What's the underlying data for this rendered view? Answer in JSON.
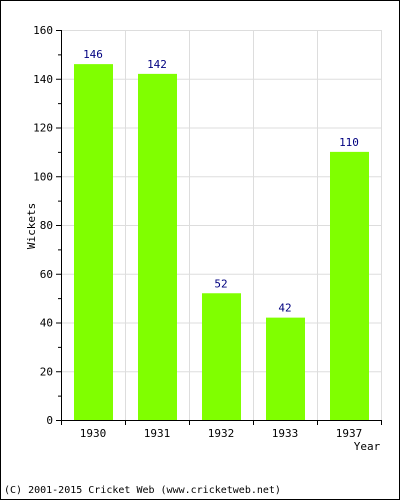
{
  "chart_data": {
    "type": "bar",
    "categories": [
      "1930",
      "1931",
      "1932",
      "1933",
      "1937"
    ],
    "values": [
      146,
      142,
      52,
      42,
      110
    ],
    "data_labels": [
      "146",
      "142",
      "52",
      "42",
      "110"
    ],
    "title": "",
    "xlabel": "Year",
    "ylabel": "Wickets",
    "ylim": [
      0,
      160
    ],
    "yticks": [
      0,
      20,
      40,
      60,
      80,
      100,
      120,
      140,
      160
    ],
    "ytick_labels": [
      "0",
      "20",
      "40",
      "60",
      "80",
      "100",
      "120",
      "140",
      "160"
    ],
    "grid": true,
    "legend": "none",
    "colors": {
      "bar": "#80ff00",
      "data_label": "#000080",
      "grid": "#dddddd",
      "axis": "#000000"
    }
  },
  "footer": {
    "copyright": "(C) 2001-2015 Cricket Web (www.cricketweb.net)"
  }
}
